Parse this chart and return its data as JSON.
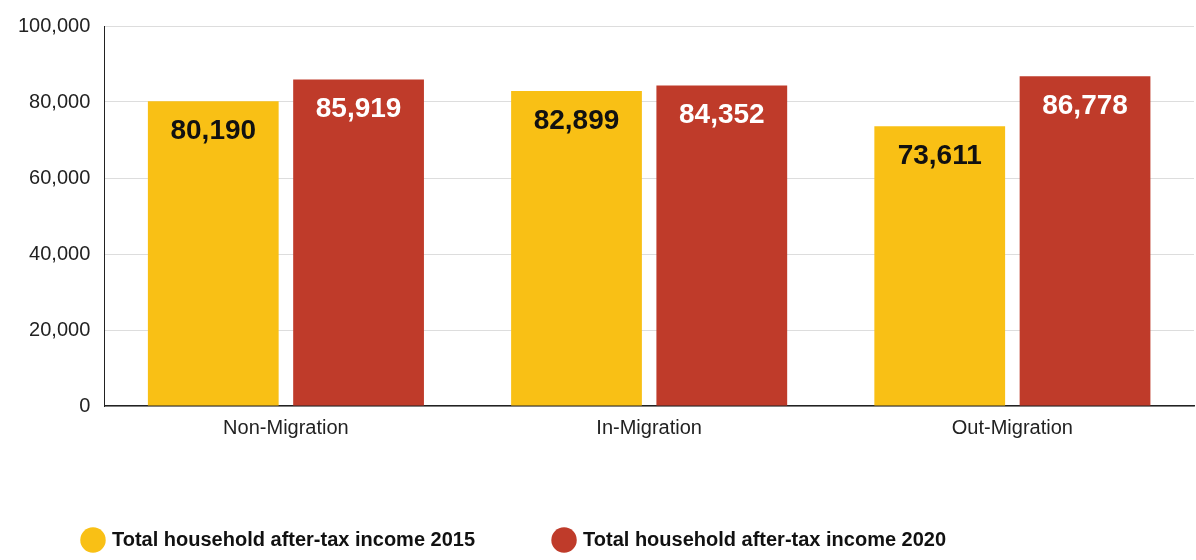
{
  "chart_data": {
    "type": "bar",
    "categories": [
      "Non-Migration",
      "In-Migration",
      "Out-Migration"
    ],
    "series": [
      {
        "name": "Total household after-tax income 2015",
        "color": "#f9c015",
        "values": [
          80190,
          82899,
          73611
        ],
        "value_labels": [
          "80,190",
          "82,899",
          "73,611"
        ]
      },
      {
        "name": "Total household after-tax income 2020",
        "color": "#bf3b2a",
        "values": [
          85919,
          84352,
          86778
        ],
        "value_labels": [
          "85,919",
          "84,352",
          "86,778"
        ]
      }
    ],
    "ylim": [
      0,
      100000
    ],
    "yticks": [
      {
        "value": 0,
        "label": "0"
      },
      {
        "value": 20000,
        "label": "20,000"
      },
      {
        "value": 40000,
        "label": "40,000"
      },
      {
        "value": 60000,
        "label": "60,000"
      },
      {
        "value": 80000,
        "label": "80,000"
      },
      {
        "value": 100000,
        "label": "100,000"
      }
    ],
    "grid": "y",
    "legend": "bottom left"
  }
}
